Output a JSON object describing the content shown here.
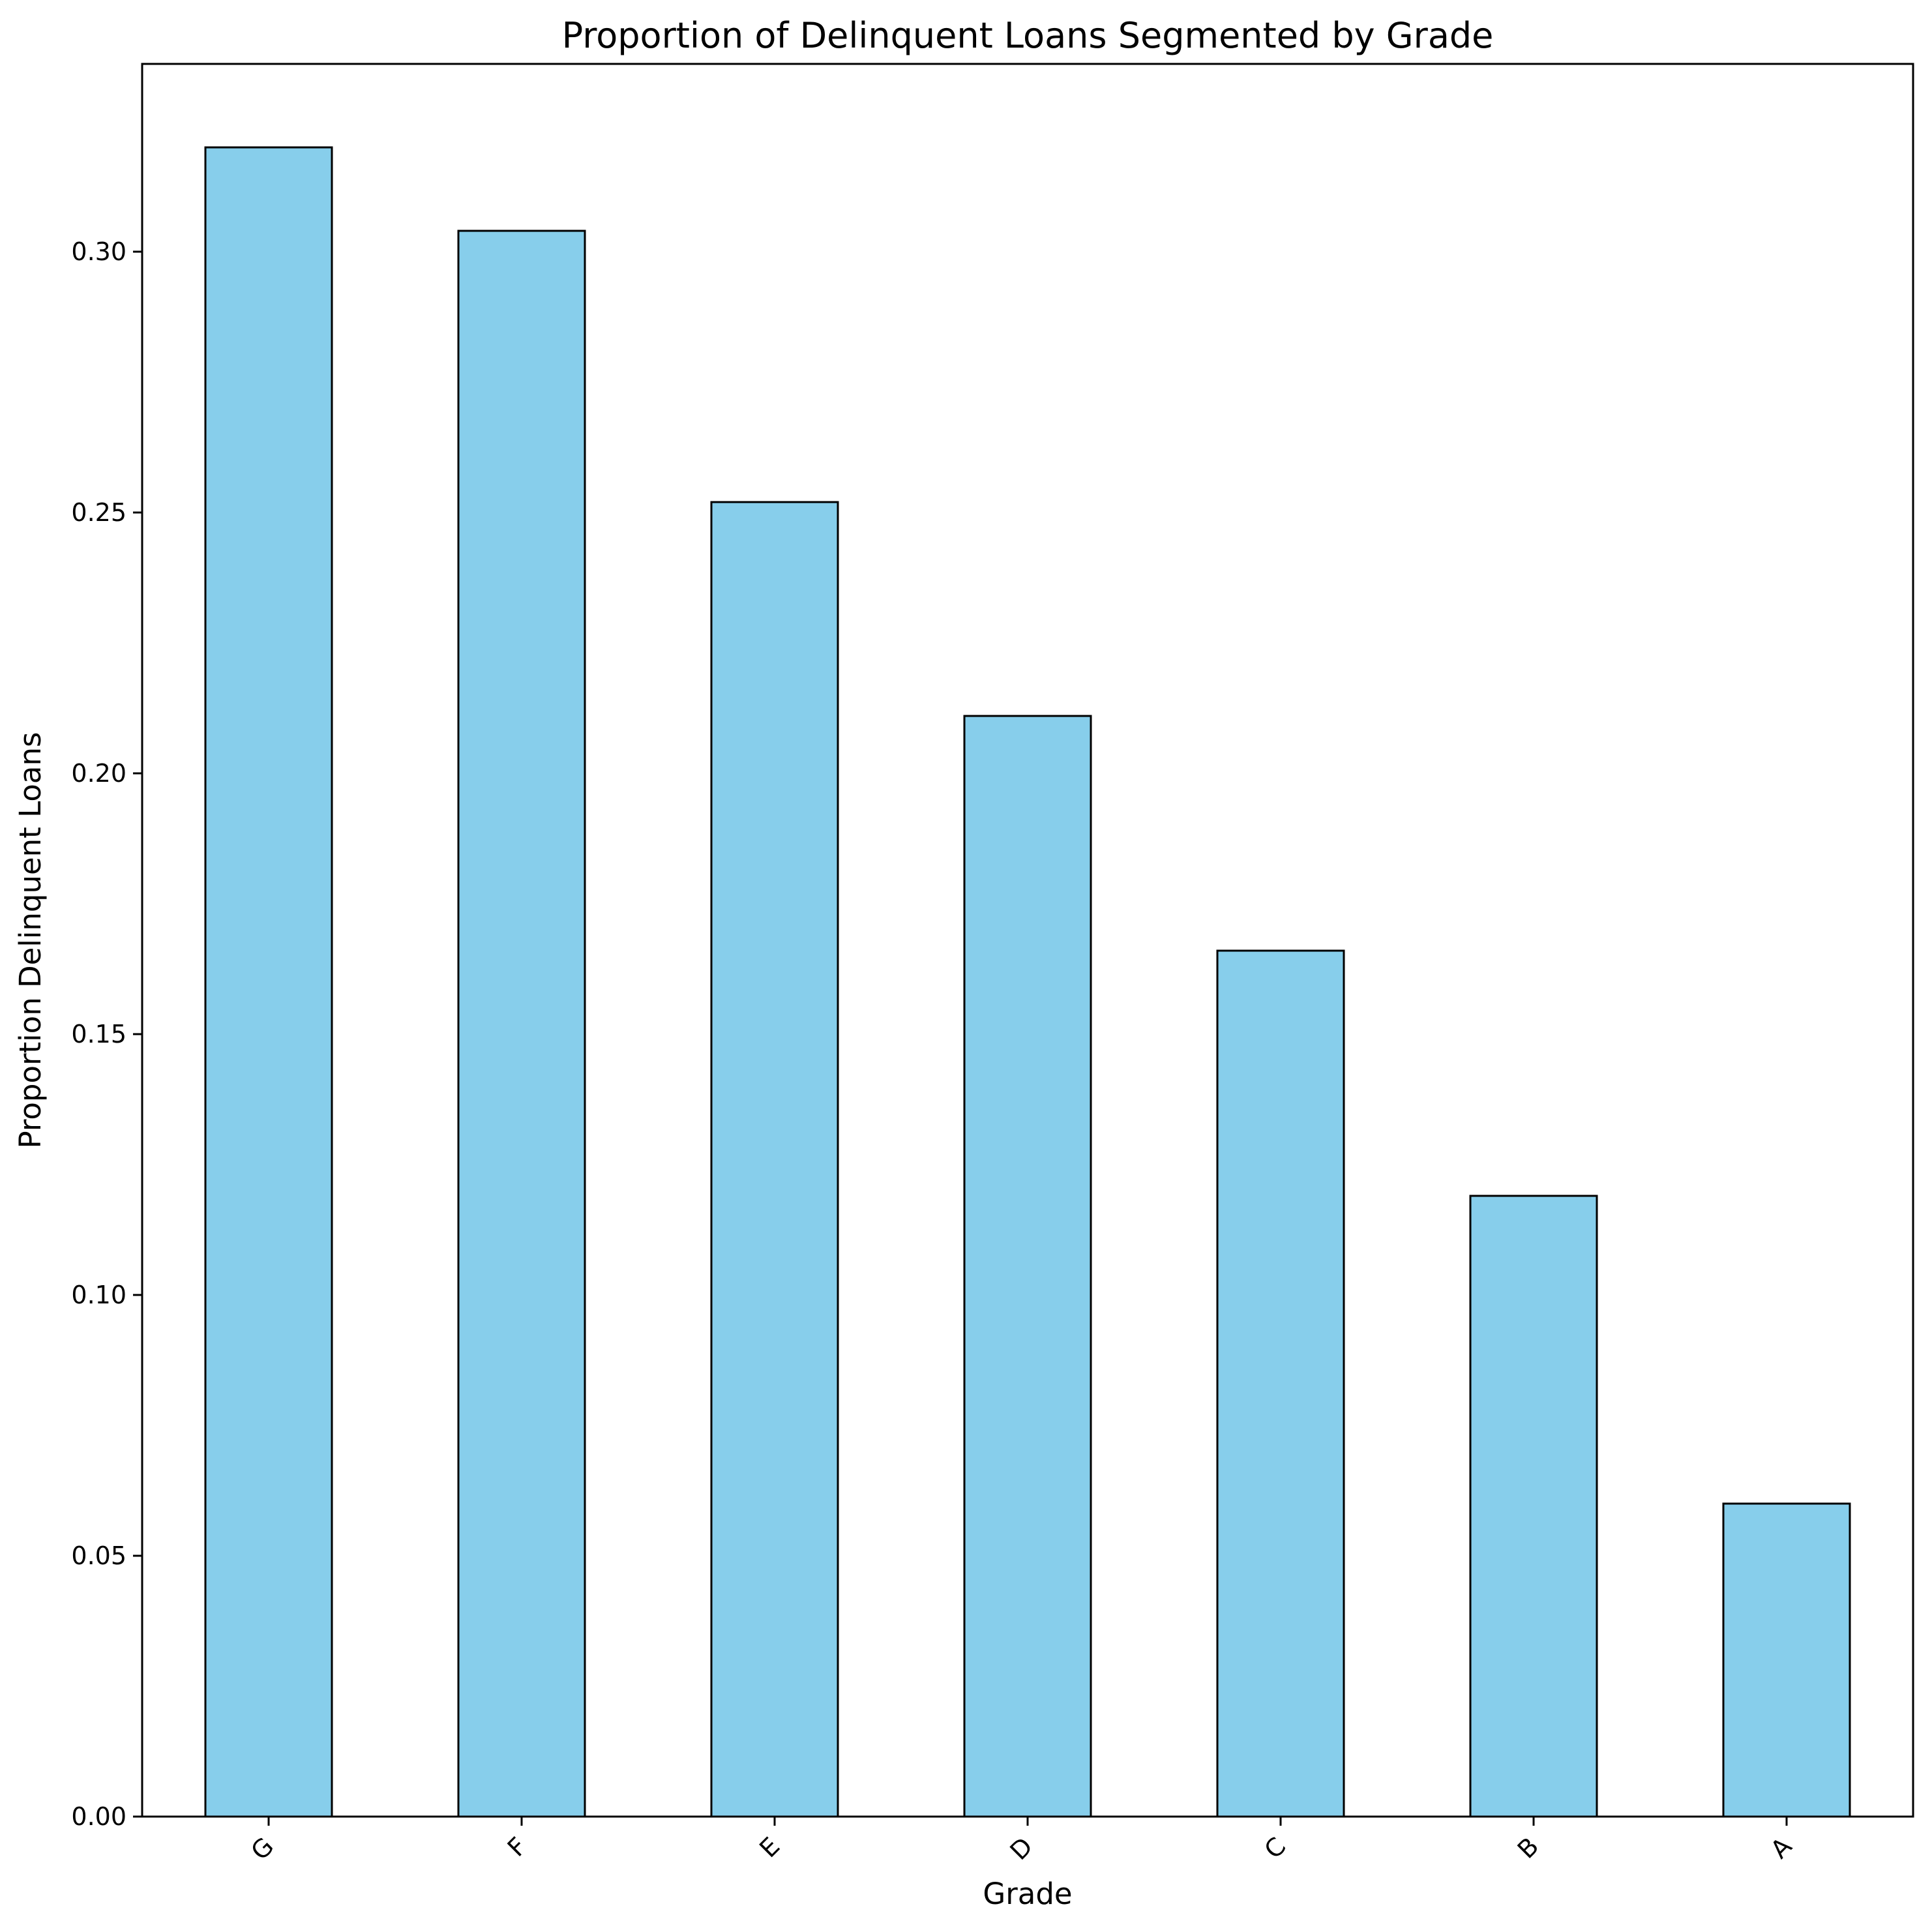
{
  "chart_data": {
    "type": "bar",
    "title": "Proportion of Delinquent Loans Segmented by Grade",
    "xlabel": "Grade",
    "ylabel": "Proportion Delinquent Loans",
    "categories": [
      "G",
      "F",
      "E",
      "D",
      "C",
      "B",
      "A"
    ],
    "values": [
      0.32,
      0.304,
      0.252,
      0.211,
      0.166,
      0.119,
      0.06
    ],
    "ylim": [
      0,
      0.336
    ],
    "yticks": [
      0.0,
      0.05,
      0.1,
      0.15,
      0.2,
      0.25,
      0.3
    ],
    "ytick_labels": [
      "0.00",
      "0.05",
      "0.10",
      "0.15",
      "0.20",
      "0.25",
      "0.30"
    ],
    "xtick_rotation": 45,
    "grid": false,
    "legend": null,
    "colors": {
      "bar_fill": "#87CEEB",
      "bar_edge": "#000000"
    }
  }
}
